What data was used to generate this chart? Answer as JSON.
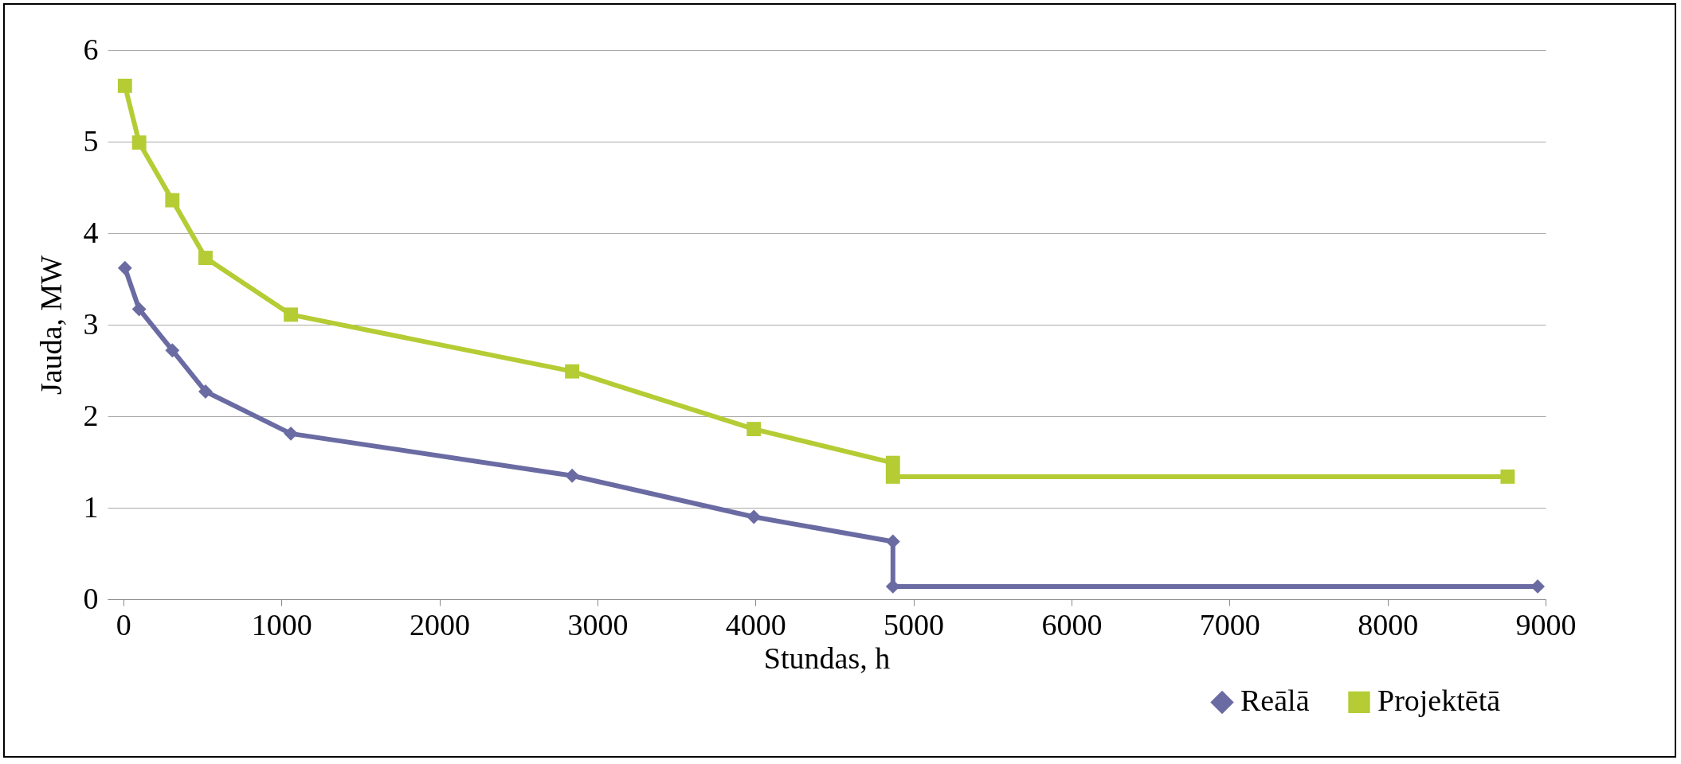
{
  "chart_data": {
    "type": "line",
    "xlabel": "Stundas, h",
    "ylabel": "Jauda, MW",
    "series": [
      {
        "name": "Reālā",
        "color": "#6b6ba3",
        "marker": "diamond",
        "x": [
          10,
          100,
          310,
          520,
          1060,
          2840,
          3990,
          4870,
          4870,
          8950
        ],
        "values": [
          3.62,
          3.17,
          2.72,
          2.27,
          1.81,
          1.35,
          0.9,
          0.63,
          0.14,
          0.14
        ]
      },
      {
        "name": "Projektētā",
        "color": "#b5cc34",
        "marker": "square",
        "x": [
          10,
          100,
          310,
          520,
          1060,
          2840,
          3990,
          4870,
          4870,
          8760
        ],
        "values": [
          5.61,
          4.99,
          4.36,
          3.73,
          3.11,
          2.49,
          1.86,
          1.49,
          1.34,
          1.34
        ]
      }
    ],
    "xlim": [
      -100,
      9000
    ],
    "xticks": [
      0,
      1000,
      2000,
      3000,
      4000,
      5000,
      6000,
      7000,
      8000,
      9000
    ],
    "ylim": [
      0,
      6
    ],
    "yticks": [
      0,
      1,
      2,
      3,
      4,
      5,
      6
    ],
    "grid": "y",
    "legend": "bottom right"
  }
}
